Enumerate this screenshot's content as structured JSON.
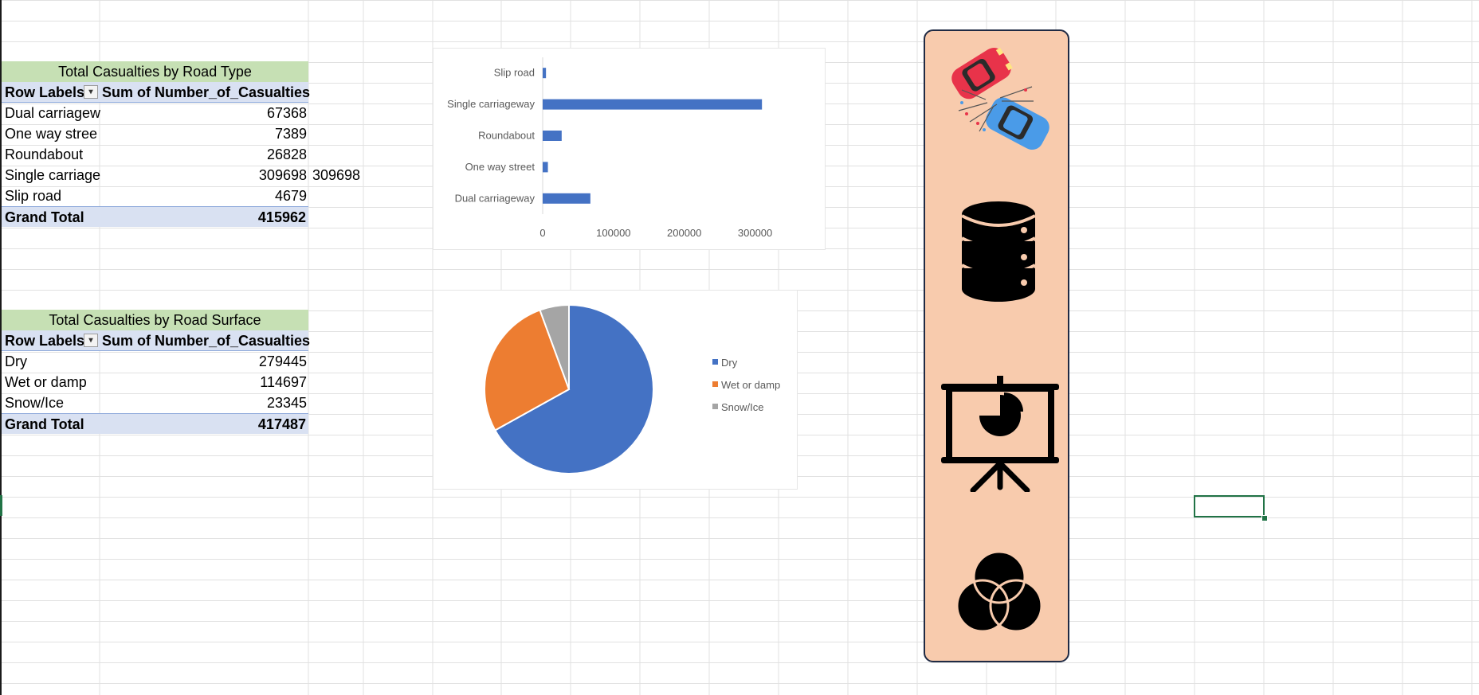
{
  "pivot_road_type": {
    "title": "Total Casualties by Road Type",
    "header_row_labels": "Row Labels",
    "header_value": "Sum of Number_of_Casualties",
    "rows": [
      {
        "label": "Dual carriagew",
        "value": "67368"
      },
      {
        "label": "One way stree",
        "value": "7389"
      },
      {
        "label": "Roundabout",
        "value": "26828"
      },
      {
        "label": "Single carriage",
        "value": "309698",
        "extra": "309698"
      },
      {
        "label": "Slip road",
        "value": "4679"
      }
    ],
    "total_label": "Grand Total",
    "total_value": "415962"
  },
  "pivot_road_surface": {
    "title": "Total Casualties by Road Surface",
    "header_row_labels": "Row Labels",
    "header_value": "Sum of Number_of_Casualties",
    "rows": [
      {
        "label": "Dry",
        "value": "279445"
      },
      {
        "label": "Wet or damp",
        "value": "114697"
      },
      {
        "label": "Snow/Ice",
        "value": "23345"
      }
    ],
    "total_label": "Grand Total",
    "total_value": "417487"
  },
  "chart_data": [
    {
      "type": "bar",
      "orientation": "horizontal",
      "categories": [
        "Slip road",
        "Single carriageway",
        "Roundabout",
        "One way street",
        "Dual carriageway"
      ],
      "values": [
        4679,
        309698,
        26828,
        7389,
        67368
      ],
      "xlim": [
        0,
        350000
      ],
      "xticks": [
        "0",
        "100000",
        "200000",
        "300000"
      ],
      "grid": false,
      "legend": false,
      "color": "#4472c4"
    },
    {
      "type": "pie",
      "labels": [
        "Dry",
        "Wet or damp",
        "Snow/Ice"
      ],
      "values": [
        279445,
        114697,
        23345
      ],
      "colors": [
        "#4472c4",
        "#ed7d31",
        "#a5a5a5"
      ],
      "legend": "right"
    }
  ],
  "sidebar_icons": [
    "car-crash-icon",
    "database-icon",
    "presentation-chart-icon",
    "venn-diagram-icon"
  ],
  "colors": {
    "pivot_title_bg": "#c6e0b4",
    "pivot_header_bg": "#d9e1f2",
    "panel_bg": "#f8cbad",
    "panel_border": "#1f2a44",
    "selection": "#217346"
  }
}
